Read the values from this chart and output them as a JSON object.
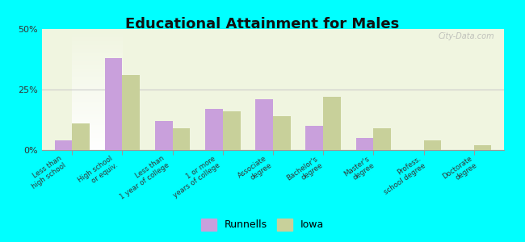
{
  "title": "Educational Attainment for Males",
  "categories": [
    "Less than\nhigh school",
    "High school\nor equiv.",
    "Less than\n1 year of college",
    "1 or more\nyears of college",
    "Associate\ndegree",
    "Bachelor's\ndegree",
    "Master's\ndegree",
    "Profess.\nschool degree",
    "Doctorate\ndegree"
  ],
  "runnells": [
    4,
    38,
    12,
    17,
    21,
    10,
    5,
    0,
    0
  ],
  "iowa": [
    11,
    31,
    9,
    16,
    14,
    22,
    9,
    4,
    2
  ],
  "runnells_color": "#c9a0dc",
  "iowa_color": "#c8d09a",
  "background_color": "#00ffff",
  "plot_bg_top": "#f0f5e0",
  "plot_bg_bottom": "#ffffff",
  "ylim": [
    0,
    50
  ],
  "yticks": [
    0,
    25,
    50
  ],
  "ytick_labels": [
    "0%",
    "25%",
    "50%"
  ],
  "watermark": "City-Data.com",
  "legend_runnells": "Runnells",
  "legend_iowa": "Iowa"
}
